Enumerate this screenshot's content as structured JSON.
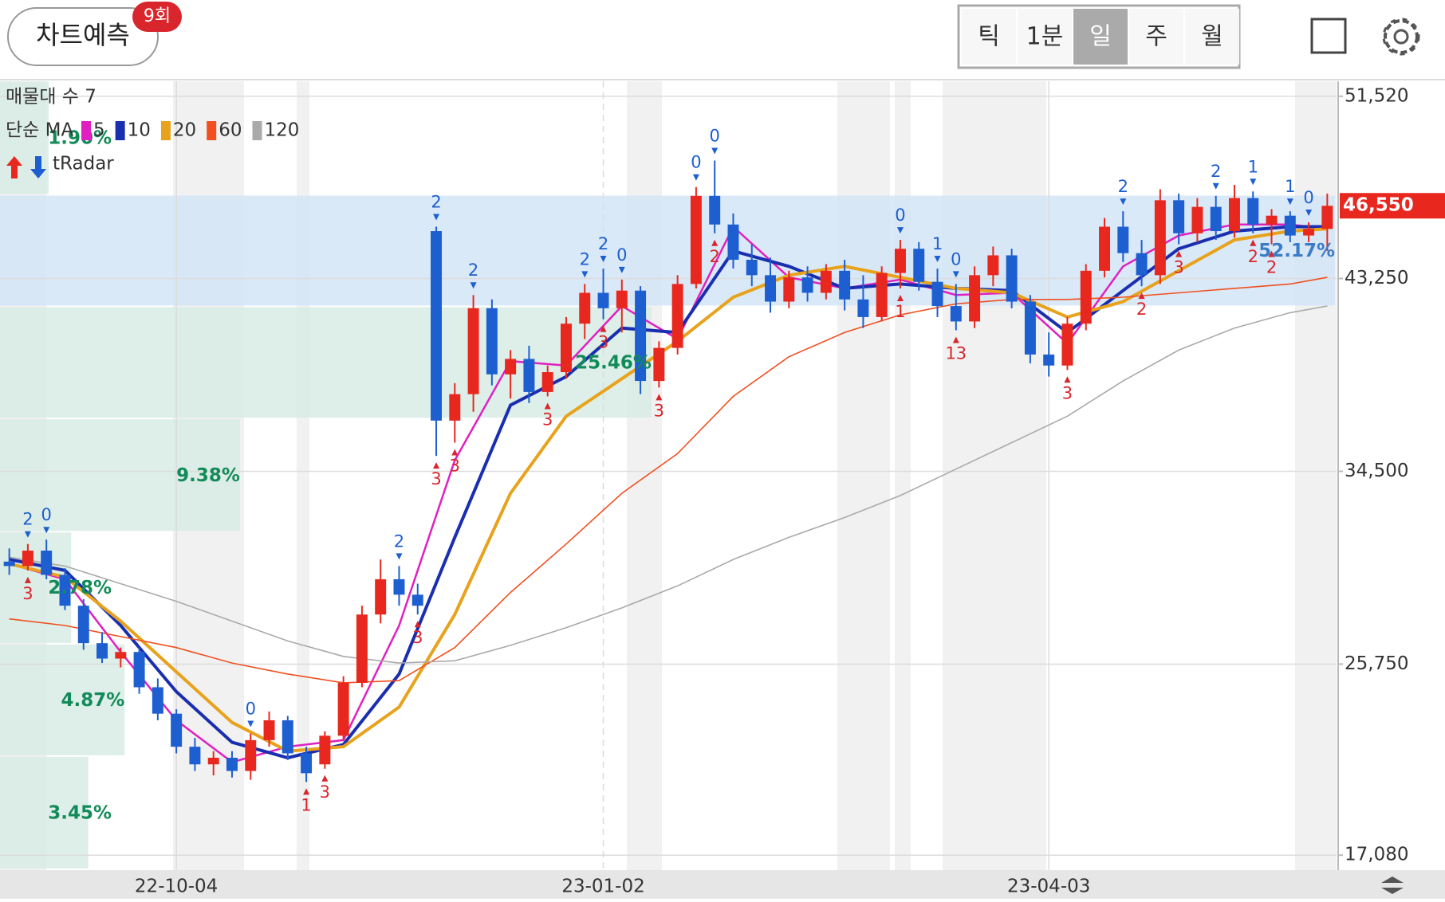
{
  "header": {
    "predict_button": "차트예측",
    "badge": "9회",
    "tabs": [
      "틱",
      "1분",
      "일",
      "주",
      "월"
    ],
    "selected_tab": "일"
  },
  "chart_data": {
    "type": "candlestick",
    "up_color": "#e8281e",
    "down_color": "#1d5fd0",
    "candles": [
      [
        30400,
        31000,
        29800,
        30200
      ],
      [
        30200,
        31200,
        30000,
        30900
      ],
      [
        30900,
        31400,
        29600,
        29800
      ],
      [
        29800,
        30100,
        28200,
        28400
      ],
      [
        28400,
        28700,
        26400,
        26700
      ],
      [
        26700,
        27200,
        25800,
        26000
      ],
      [
        26000,
        26500,
        25600,
        26300
      ],
      [
        26300,
        26500,
        24400,
        24700
      ],
      [
        24700,
        25100,
        23200,
        23500
      ],
      [
        23500,
        23700,
        21700,
        22000
      ],
      [
        22000,
        22400,
        20900,
        21200
      ],
      [
        21200,
        21800,
        20700,
        21500
      ],
      [
        21500,
        21800,
        20600,
        20900
      ],
      [
        20900,
        22600,
        20500,
        22300
      ],
      [
        22300,
        23600,
        22000,
        23200
      ],
      [
        23200,
        23400,
        21400,
        21700
      ],
      [
        21700,
        22000,
        20400,
        20800
      ],
      [
        21200,
        22700,
        21000,
        22500
      ],
      [
        22500,
        25200,
        22300,
        24900
      ],
      [
        24900,
        28400,
        24700,
        28000
      ],
      [
        28000,
        30500,
        27600,
        29600
      ],
      [
        29600,
        30200,
        28400,
        28900
      ],
      [
        28900,
        29400,
        28000,
        28400
      ],
      [
        45400,
        45600,
        35200,
        36800
      ],
      [
        36800,
        38500,
        35800,
        38000
      ],
      [
        38000,
        42500,
        37200,
        41900
      ],
      [
        41900,
        42300,
        38400,
        38900
      ],
      [
        38900,
        40000,
        37800,
        39600
      ],
      [
        39600,
        40200,
        37600,
        38100
      ],
      [
        38100,
        39300,
        37900,
        39000
      ],
      [
        39000,
        41500,
        38700,
        41200
      ],
      [
        41200,
        43000,
        40500,
        42600
      ],
      [
        42600,
        43700,
        41400,
        41900
      ],
      [
        41900,
        43200,
        40800,
        42700
      ],
      [
        42700,
        42900,
        38000,
        38600
      ],
      [
        38600,
        40400,
        38300,
        40100
      ],
      [
        40100,
        43400,
        39800,
        43000
      ],
      [
        43000,
        47400,
        42800,
        47000
      ],
      [
        47000,
        48600,
        45300,
        45700
      ],
      [
        45700,
        46200,
        43700,
        44100
      ],
      [
        44100,
        44800,
        42900,
        43400
      ],
      [
        43400,
        44200,
        41700,
        42200
      ],
      [
        42200,
        43600,
        41900,
        43300
      ],
      [
        43300,
        43800,
        42200,
        42600
      ],
      [
        42600,
        43900,
        42300,
        43600
      ],
      [
        43600,
        44100,
        41800,
        42300
      ],
      [
        42300,
        43400,
        41000,
        41500
      ],
      [
        41500,
        43800,
        41300,
        43500
      ],
      [
        43500,
        45000,
        42800,
        44600
      ],
      [
        44600,
        44900,
        42700,
        43100
      ],
      [
        43100,
        43700,
        41500,
        42000
      ],
      [
        42000,
        43000,
        40900,
        41300
      ],
      [
        41300,
        43800,
        41000,
        43400
      ],
      [
        43400,
        44700,
        42900,
        44300
      ],
      [
        44300,
        44600,
        41900,
        42200
      ],
      [
        42200,
        42500,
        39400,
        39800
      ],
      [
        39800,
        40800,
        38800,
        39300
      ],
      [
        39300,
        41500,
        39100,
        41200
      ],
      [
        41200,
        43900,
        40900,
        43600
      ],
      [
        43600,
        46000,
        43300,
        45600
      ],
      [
        45600,
        46300,
        44000,
        44400
      ],
      [
        44400,
        45000,
        42900,
        43400
      ],
      [
        43400,
        47300,
        43000,
        46800
      ],
      [
        46800,
        47100,
        44800,
        45300
      ],
      [
        45300,
        46900,
        44900,
        46500
      ],
      [
        46500,
        47000,
        45000,
        45400
      ],
      [
        45400,
        47500,
        45100,
        46900
      ],
      [
        46900,
        47200,
        45300,
        45700
      ],
      [
        45700,
        46400,
        44800,
        46100
      ],
      [
        46100,
        46300,
        44900,
        45200
      ],
      [
        45200,
        45800,
        44900,
        45500
      ],
      [
        45500,
        47100,
        44500,
        46550
      ]
    ],
    "moving_averages": {
      "label": "단순 MA",
      "x": [
        0,
        3,
        6,
        9,
        12,
        15,
        18,
        21,
        24,
        27,
        30,
        33,
        36,
        39,
        42,
        45,
        48,
        51,
        54,
        57,
        60,
        63,
        66,
        69,
        71
      ],
      "series": [
        {
          "name": "5",
          "color": "#e020c0",
          "values": [
            30300,
            29600,
            26300,
            23200,
            21300,
            22000,
            22300,
            27500,
            35000,
            39500,
            39300,
            42000,
            40500,
            45600,
            43300,
            42800,
            43200,
            42500,
            42600,
            40300,
            43800,
            45200,
            45700,
            45700,
            45500
          ]
        },
        {
          "name": "10",
          "color": "#1a2fb0",
          "values": [
            30500,
            30000,
            27500,
            24500,
            22200,
            21500,
            22100,
            25300,
            31500,
            37500,
            38800,
            41000,
            40800,
            44500,
            43800,
            42800,
            43000,
            42800,
            42700,
            40800,
            42700,
            44600,
            45400,
            45600,
            45600
          ]
        },
        {
          "name": "20",
          "color": "#e8a21c",
          "values": [
            30300,
            29700,
            27700,
            25400,
            23100,
            21800,
            22000,
            23800,
            28000,
            33500,
            37000,
            38700,
            40400,
            42400,
            43400,
            43800,
            43300,
            42800,
            42600,
            41500,
            42200,
            43600,
            45000,
            45400,
            45500
          ]
        },
        {
          "name": "60",
          "color": "#f05020",
          "values": [
            27800,
            27500,
            27000,
            26500,
            25800,
            25300,
            24900,
            25000,
            26500,
            29000,
            31200,
            33500,
            35300,
            37900,
            39700,
            40800,
            41600,
            42100,
            42300,
            42300,
            42400,
            42600,
            42800,
            43000,
            43300
          ]
        },
        {
          "name": "120",
          "color": "#aaaaaa",
          "values": [
            30600,
            30200,
            29400,
            28600,
            27700,
            26800,
            26100,
            25800,
            25900,
            26600,
            27400,
            28300,
            29300,
            30500,
            31500,
            32400,
            33400,
            34600,
            35800,
            37000,
            38600,
            40000,
            41000,
            41700,
            42000
          ]
        }
      ]
    },
    "volume_profile": {
      "label": "매물대 수 7",
      "edges": [
        16400,
        21540,
        26640,
        31720,
        36860,
        41950,
        47010,
        52190
      ],
      "values": [
        3.45,
        4.87,
        2.78,
        9.38,
        25.46,
        52.17,
        1.9
      ],
      "value_labels": [
        "3.45%",
        "4.87%",
        "2.78%",
        "9.38%",
        "25.46%",
        "52.17%",
        "1.90%"
      ],
      "colors": [
        "#d7ece4",
        "#d7ece4",
        "#d7ece4",
        "#d7ece4",
        "#d7ece4",
        "#d3e5f7",
        "#d7ece4"
      ]
    },
    "signals_label": "tRadar",
    "signals": [
      {
        "x": 1,
        "value": 2,
        "side": "sell"
      },
      {
        "x": 2,
        "value": 0,
        "side": "sell"
      },
      {
        "x": 13,
        "value": 0,
        "side": "sell"
      },
      {
        "x": 21,
        "value": 2,
        "side": "sell"
      },
      {
        "x": 23,
        "value": 2,
        "side": "sell"
      },
      {
        "x": 25,
        "value": 2,
        "side": "sell"
      },
      {
        "x": 31,
        "value": 2,
        "side": "sell"
      },
      {
        "x": 32,
        "value": 2,
        "side": "sell"
      },
      {
        "x": 33,
        "value": 0,
        "side": "sell"
      },
      {
        "x": 37,
        "value": 0,
        "side": "sell"
      },
      {
        "x": 38,
        "value": 0,
        "side": "sell"
      },
      {
        "x": 48,
        "value": 0,
        "side": "sell"
      },
      {
        "x": 50,
        "value": 1,
        "side": "sell"
      },
      {
        "x": 51,
        "value": 0,
        "side": "sell"
      },
      {
        "x": 60,
        "value": 2,
        "side": "sell"
      },
      {
        "x": 65,
        "value": 2,
        "side": "sell"
      },
      {
        "x": 67,
        "value": 1,
        "side": "sell"
      },
      {
        "x": 69,
        "value": 1,
        "side": "sell"
      },
      {
        "x": 70,
        "value": 0,
        "side": "sell"
      },
      {
        "x": 1,
        "value": 3,
        "side": "buy"
      },
      {
        "x": 16,
        "value": 1,
        "side": "buy"
      },
      {
        "x": 17,
        "value": 3,
        "side": "buy"
      },
      {
        "x": 22,
        "value": 3,
        "side": "buy"
      },
      {
        "x": 23,
        "value": 3,
        "side": "buy"
      },
      {
        "x": 24,
        "value": 3,
        "side": "buy"
      },
      {
        "x": 29,
        "value": 3,
        "side": "buy"
      },
      {
        "x": 32,
        "value": 3,
        "side": "buy"
      },
      {
        "x": 35,
        "value": 3,
        "side": "buy"
      },
      {
        "x": 38,
        "value": 2,
        "side": "buy"
      },
      {
        "x": 48,
        "value": 1,
        "side": "buy"
      },
      {
        "x": 51,
        "value": 13,
        "side": "buy"
      },
      {
        "x": 57,
        "value": 3,
        "side": "buy"
      },
      {
        "x": 61,
        "value": 2,
        "side": "buy"
      },
      {
        "x": 63,
        "value": 3,
        "side": "buy"
      },
      {
        "x": 67,
        "value": 2,
        "side": "buy"
      },
      {
        "x": 68,
        "value": 2,
        "side": "buy"
      }
    ],
    "last_price": {
      "value": 46550,
      "label": "46,550"
    },
    "ylim": [
      16400,
      52200
    ],
    "yticks": [
      {
        "value": 51520,
        "label": "51,520"
      },
      {
        "value": 43250,
        "label": "43,250"
      },
      {
        "value": 34500,
        "label": "34,500"
      },
      {
        "value": 25750,
        "label": "25,750"
      },
      {
        "value": 17080,
        "label": "17,080"
      }
    ],
    "xticks": [
      {
        "value": 9,
        "label": "22-10-04"
      },
      {
        "value": 32,
        "label": "23-01-02"
      },
      {
        "value": 56,
        "label": "23-04-03"
      }
    ],
    "grid": true
  }
}
